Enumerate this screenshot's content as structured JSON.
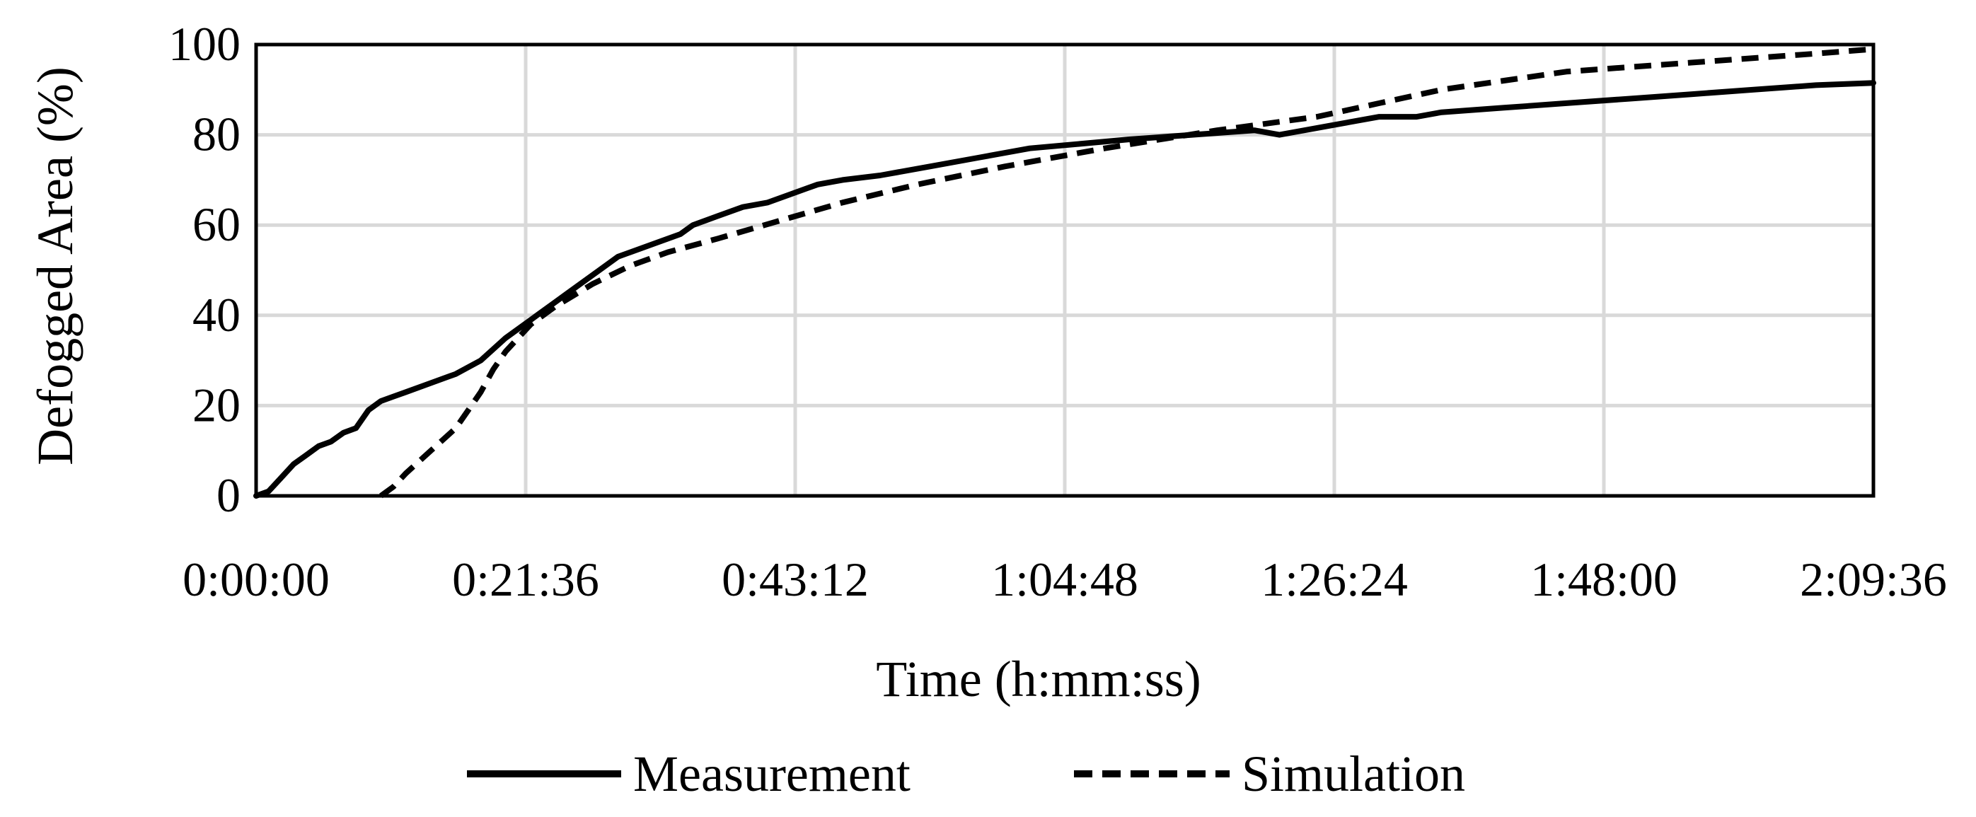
{
  "chart_data": {
    "type": "line",
    "title": "",
    "xlabel": "Time (h:mm:ss)",
    "ylabel": "Defogged Area (%)",
    "x_unit": "h:mm:ss",
    "xlim": [
      "0:00:00",
      "2:09:36"
    ],
    "ylim": [
      0,
      100
    ],
    "x_tick_labels": [
      "0:00:00",
      "0:21:36",
      "0:43:12",
      "1:04:48",
      "1:26:24",
      "1:48:00",
      "2:09:36"
    ],
    "y_tick_labels": [
      "0",
      "20",
      "40",
      "60",
      "80",
      "100"
    ],
    "grid": true,
    "legend_position": "bottom",
    "series": [
      {
        "name": "Measurement",
        "style": "solid",
        "color": "#000000",
        "x": [
          "0:00:00",
          "0:01:00",
          "0:02:00",
          "0:03:00",
          "0:04:00",
          "0:05:00",
          "0:06:00",
          "0:07:00",
          "0:08:00",
          "0:09:00",
          "0:10:00",
          "0:11:00",
          "0:12:00",
          "0:14:00",
          "0:16:00",
          "0:18:00",
          "0:20:00",
          "0:22:00",
          "0:24:00",
          "0:25:00",
          "0:27:00",
          "0:29:00",
          "0:30:00",
          "0:32:00",
          "0:34:00",
          "0:35:00",
          "0:37:00",
          "0:39:00",
          "0:41:00",
          "0:43:00",
          "0:45:00",
          "0:47:00",
          "0:50:00",
          "0:54:00",
          "0:58:00",
          "1:02:00",
          "1:06:00",
          "1:10:00",
          "1:15:00",
          "1:20:00",
          "1:22:00",
          "1:24:00",
          "1:26:00",
          "1:30:00",
          "1:33:00",
          "1:35:00",
          "1:40:00",
          "1:45:00",
          "1:50:00",
          "1:55:00",
          "2:00:00",
          "2:05:00",
          "2:09:36"
        ],
        "values": [
          0,
          1,
          4,
          7,
          9,
          11,
          12,
          14,
          15,
          19,
          21,
          22,
          23,
          25,
          27,
          30,
          35,
          39,
          43,
          45,
          49,
          53,
          54,
          56,
          58,
          60,
          62,
          64,
          65,
          67,
          69,
          70,
          71,
          73,
          75,
          77,
          78,
          79,
          80,
          81,
          80,
          81,
          82,
          84,
          84,
          85,
          86,
          87,
          88,
          89,
          90,
          91,
          91.5
        ]
      },
      {
        "name": "Simulation",
        "style": "dashed",
        "color": "#000000",
        "x": [
          "0:10:00",
          "0:11:00",
          "0:12:00",
          "0:14:00",
          "0:16:00",
          "0:17:00",
          "0:18:00",
          "0:19:00",
          "0:20:00",
          "0:22:00",
          "0:24:00",
          "0:27:00",
          "0:30:00",
          "0:33:00",
          "0:37:00",
          "0:42:00",
          "0:47:00",
          "0:53:00",
          "1:00:00",
          "1:08:00",
          "1:17:00",
          "1:25:00",
          "1:30:00",
          "1:35:00",
          "1:40:00",
          "1:45:00",
          "1:50:00",
          "1:55:00",
          "2:00:00",
          "2:05:00",
          "2:09:36"
        ],
        "values": [
          0,
          2,
          5,
          10,
          15,
          19,
          23,
          28,
          32,
          38,
          42,
          47,
          51,
          54,
          57,
          61,
          65,
          69,
          73,
          77,
          81,
          84,
          87,
          90,
          92,
          94,
          95,
          96,
          97,
          98,
          99
        ]
      }
    ]
  }
}
